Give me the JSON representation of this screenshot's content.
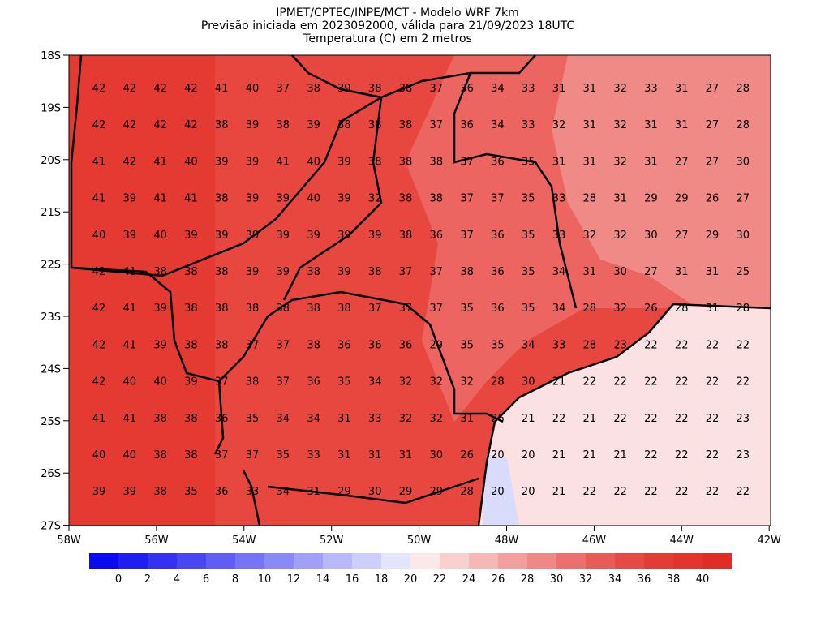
{
  "header": {
    "title": "IPMET/CPTEC/INPE/MCT - Modelo WRF 7km",
    "subtitle": "Previsão iniciada em 2023092000, válida para 21/09/2023 18UTC",
    "variable": "Temperatura (C) em 2 metros"
  },
  "lat_labels": [
    "18S",
    "19S",
    "20S",
    "21S",
    "22S",
    "23S",
    "24S",
    "25S",
    "26S",
    "27S"
  ],
  "lon_labels": [
    "58W",
    "56W",
    "54W",
    "52W",
    "50W",
    "48W",
    "46W",
    "44W",
    "42W"
  ],
  "grid": {
    "rows": [
      [
        42,
        42,
        42,
        42,
        41,
        40,
        37,
        38,
        39,
        38,
        38,
        37,
        36,
        34,
        33,
        31,
        31,
        32,
        33,
        31,
        27,
        28
      ],
      [
        42,
        42,
        42,
        42,
        38,
        39,
        38,
        39,
        38,
        38,
        38,
        37,
        36,
        34,
        33,
        32,
        31,
        32,
        31,
        31,
        27,
        28
      ],
      [
        41,
        42,
        41,
        40,
        39,
        39,
        41,
        40,
        39,
        38,
        38,
        38,
        37,
        36,
        35,
        31,
        31,
        32,
        31,
        27,
        27,
        30
      ],
      [
        41,
        39,
        41,
        41,
        38,
        39,
        39,
        40,
        39,
        32,
        38,
        38,
        37,
        37,
        35,
        33,
        28,
        31,
        29,
        29,
        26,
        27
      ],
      [
        40,
        39,
        40,
        39,
        39,
        39,
        39,
        39,
        39,
        39,
        38,
        36,
        37,
        36,
        35,
        33,
        32,
        32,
        30,
        27,
        29,
        30
      ],
      [
        42,
        41,
        38,
        38,
        38,
        39,
        39,
        38,
        39,
        38,
        37,
        37,
        38,
        36,
        35,
        34,
        31,
        30,
        27,
        31,
        31,
        25
      ],
      [
        42,
        41,
        39,
        38,
        38,
        38,
        38,
        38,
        38,
        37,
        37,
        37,
        35,
        36,
        35,
        34,
        28,
        32,
        26,
        28,
        31,
        28
      ],
      [
        42,
        41,
        39,
        38,
        38,
        37,
        37,
        38,
        36,
        36,
        36,
        29,
        35,
        35,
        34,
        33,
        28,
        23,
        22,
        22,
        22,
        22
      ],
      [
        42,
        40,
        40,
        39,
        37,
        38,
        37,
        36,
        35,
        34,
        32,
        32,
        32,
        28,
        30,
        21,
        22,
        22,
        22,
        22,
        22,
        22
      ],
      [
        41,
        41,
        38,
        38,
        36,
        35,
        34,
        34,
        31,
        33,
        32,
        32,
        31,
        26,
        21,
        22,
        21,
        22,
        22,
        22,
        22,
        23
      ],
      [
        40,
        40,
        38,
        38,
        37,
        37,
        35,
        33,
        31,
        31,
        31,
        30,
        26,
        20,
        20,
        21,
        21,
        21,
        22,
        22,
        22,
        23
      ],
      [
        39,
        39,
        38,
        35,
        36,
        33,
        34,
        31,
        29,
        30,
        29,
        29,
        28,
        20,
        20,
        21,
        22,
        22,
        22,
        22,
        22,
        22
      ]
    ]
  },
  "colorbar": {
    "labels": [
      0,
      2,
      4,
      6,
      8,
      10,
      12,
      14,
      16,
      18,
      20,
      22,
      24,
      26,
      28,
      30,
      32,
      34,
      36,
      38,
      40
    ],
    "colors": [
      "#0a0af0",
      "#1e1ef0",
      "#3232f0",
      "#4848f2",
      "#5e5ef4",
      "#7474f5",
      "#8a8af7",
      "#a0a0f8",
      "#b8b8fa",
      "#cecefb",
      "#e4e4fc",
      "#fce8e8",
      "#f9d0d0",
      "#f6b8b6",
      "#f2a09e",
      "#ee8886",
      "#eb706e",
      "#e85c58",
      "#e64a44",
      "#e33c35",
      "#e2342c",
      "#e02e26"
    ]
  }
}
